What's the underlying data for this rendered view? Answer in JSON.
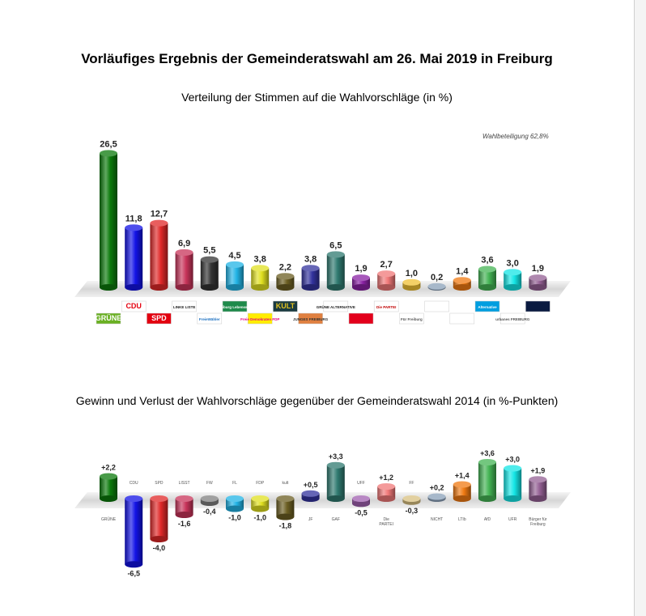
{
  "header": {
    "title": "Vorläufiges Ergebnis der Gemeinderatswahl am 26. Mai 2019 in Freiburg"
  },
  "chart_data": [
    {
      "type": "bar",
      "title": "Verteilung der Stimmen auf die Wahlvorschläge (in %)",
      "annotation": "Wahlbeteiligung 62,8%",
      "grid": false,
      "legend": "logos below bars",
      "values": [
        26.5,
        11.8,
        12.7,
        6.9,
        5.5,
        4.5,
        3.8,
        2.2,
        3.8,
        6.5,
        1.9,
        2.7,
        1.0,
        0.2,
        1.4,
        3.6,
        3.0,
        1.9
      ],
      "data_labels": [
        "26,5",
        "11,8",
        "12,7",
        "6,9",
        "5,5",
        "4,5",
        "3,8",
        "2,2",
        "3,8",
        "6,5",
        "1,9",
        "2,7",
        "1,0",
        "0,2",
        "1,4",
        "3,6",
        "3,0",
        "1,9"
      ],
      "colors": [
        "#0b7a0b",
        "#1212e6",
        "#e02828",
        "#c8345a",
        "#333333",
        "#22b4e6",
        "#e0e020",
        "#6b5e22",
        "#33339e",
        "#2f7a70",
        "#8a22a4",
        "#f07878",
        "#f0c034",
        "#8aa0b8",
        "#f07a12",
        "#44b454",
        "#14e6e6",
        "#946094"
      ],
      "logos": [
        {
          "text": "GRÜNE",
          "bg": "#6ab023",
          "fg": "#ffffff"
        },
        {
          "text": "CDU",
          "bg": "#ffffff",
          "fg": "#e3000f"
        },
        {
          "text": "SPD",
          "bg": "#e3000f",
          "fg": "#ffffff"
        },
        {
          "text": "LINKE LISTE",
          "bg": "#ffffff",
          "fg": "#222222"
        },
        {
          "text": "FreieWähler",
          "bg": "#ffffff",
          "fg": "#1a6fc0"
        },
        {
          "text": "Freiburg Lebenswert",
          "bg": "#1e8a4a",
          "fg": "#ffffff"
        },
        {
          "text": "Freie Demokraten FDP",
          "bg": "#ffed00",
          "fg": "#e5007d"
        },
        {
          "text": "KULT",
          "bg": "#1a3a40",
          "fg": "#e0c020"
        },
        {
          "text": "JUNGES FREIBURG",
          "bg": "#e08040",
          "fg": "#333333"
        },
        {
          "text": "GRÜNE ALTERNATIVE",
          "bg": "#ffffff",
          "fg": "#222222"
        },
        {
          "text": "",
          "bg": "#e3001b",
          "fg": "#ffffff"
        },
        {
          "text": "Die PARTEI",
          "bg": "#ffffff",
          "fg": "#c00000"
        },
        {
          "text": "Für Freiburg",
          "bg": "#ffffff",
          "fg": "#555555"
        },
        {
          "text": "",
          "bg": "#ffffff",
          "fg": "#222222"
        },
        {
          "text": "",
          "bg": "#ffffff",
          "fg": "#8060c0"
        },
        {
          "text": "Alternative",
          "bg": "#009ee0",
          "fg": "#ffffff"
        },
        {
          "text": "urbanes FREIBURG",
          "bg": "#ffffff",
          "fg": "#555555"
        },
        {
          "text": "",
          "bg": "#0a1a40",
          "fg": "#ffffff"
        }
      ]
    },
    {
      "type": "bar",
      "title": "Gewinn und Verlust der Wahlvorschläge gegenüber der Gemeinderatswahl 2014 (in %-Punkten)",
      "grid": false,
      "categories": [
        "GRÜNE",
        "CDU",
        "SPD",
        "LISST",
        "FW",
        "FL",
        "FDP",
        "kult",
        "JF",
        "GAF",
        "UFF",
        "Die PARTEI",
        "FF",
        "NICHT",
        "LTIb",
        "AfD",
        "UFR",
        "Bürger für Freiburg"
      ],
      "values": [
        2.2,
        -6.5,
        -4.0,
        -1.6,
        -0.4,
        -1.0,
        -1.0,
        -1.8,
        0.5,
        3.3,
        -0.5,
        1.2,
        -0.3,
        0.2,
        1.4,
        3.6,
        3.0,
        1.9
      ],
      "data_labels": [
        "+2,2",
        "-6,5",
        "-4,0",
        "-1,6",
        "-0,4",
        "-1,0",
        "-1,0",
        "-1,8",
        "+0,5",
        "+3,3",
        "-0,5",
        "+1,2",
        "-0,3",
        "+0,2",
        "+1,4",
        "+3,6",
        "+3,0",
        "+1,9"
      ],
      "colors": [
        "#0b7a0b",
        "#1212e6",
        "#e02828",
        "#c8345a",
        "#808080",
        "#22b4e6",
        "#e0e020",
        "#6b5e22",
        "#33339e",
        "#2f7a70",
        "#a060b0",
        "#f07878",
        "#d8c080",
        "#8aa0b8",
        "#f07a12",
        "#44b454",
        "#14e6e6",
        "#946094"
      ]
    }
  ]
}
